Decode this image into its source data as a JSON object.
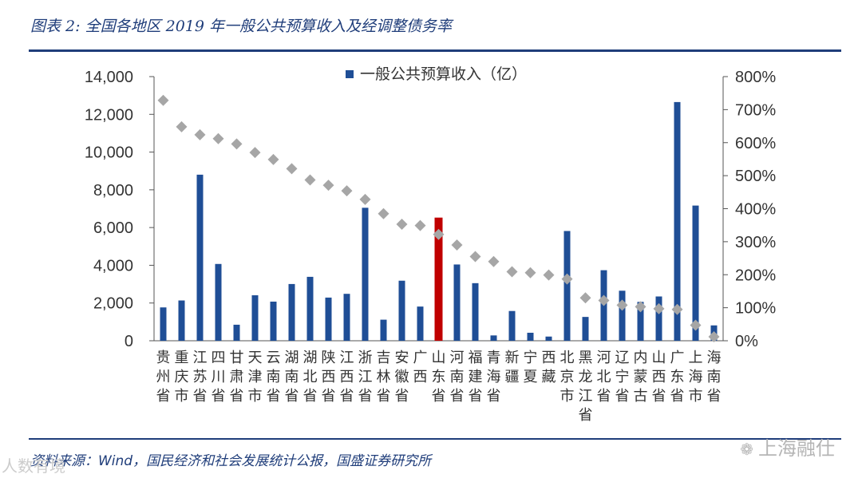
{
  "header": {
    "title": "图表 2: 全国各地区 2019 年一般公共预算收入及经调整债务率"
  },
  "footer": {
    "source": "资料来源：Wind，国民经济和社会发展统计公报，国盛证券研究所"
  },
  "watermarks": {
    "left": "人数有境",
    "right": "上海融仕",
    "right_icon": "wechat-icon"
  },
  "colors": {
    "bar": "#1f4e96",
    "highlight_bar": "#c00000",
    "marker": "#a6a6a6",
    "title": "#1f3d7a"
  },
  "chart_data": {
    "type": "bar",
    "title": "",
    "legend": {
      "position": "top-center",
      "entries": [
        "一般公共预算收入（亿）"
      ]
    },
    "categories": [
      "贵州省",
      "重庆市",
      "江苏省",
      "四川省",
      "甘肃省",
      "天津市",
      "云南省",
      "湖南省",
      "湖北省",
      "陕西省",
      "江西省",
      "浙江省",
      "吉林省",
      "安徽省",
      "广西",
      "山东省",
      "河南省",
      "福建省",
      "青海省",
      "新疆",
      "宁夏",
      "西藏",
      "北京市",
      "黑龙江省",
      "河北省",
      "辽宁省",
      "内蒙古",
      "山西省",
      "广东省",
      "上海市",
      "海南省"
    ],
    "highlight_index": 15,
    "series": [
      {
        "name": "一般公共预算收入（亿）",
        "type": "bar",
        "axis": "left",
        "values": [
          1767,
          2135,
          8802,
          4070,
          850,
          2410,
          2074,
          3007,
          3388,
          2288,
          2487,
          7048,
          1117,
          3183,
          1812,
          6527,
          4042,
          3052,
          282,
          1577,
          424,
          222,
          5817,
          1263,
          3739,
          2652,
          2060,
          2347,
          12651,
          7165,
          814
        ]
      },
      {
        "name": "",
        "type": "scatter",
        "axis": "right",
        "marker": "diamond",
        "values": [
          728,
          648,
          624,
          612,
          596,
          570,
          549,
          521,
          487,
          471,
          454,
          428,
          385,
          353,
          349,
          322,
          290,
          255,
          240,
          209,
          206,
          199,
          187,
          130,
          122,
          108,
          103,
          97,
          95,
          47,
          12
        ]
      }
    ],
    "y_left": {
      "min": 0,
      "max": 14000,
      "ticks": [
        "0",
        "2,000",
        "4,000",
        "6,000",
        "8,000",
        "10,000",
        "12,000",
        "14,000"
      ]
    },
    "y_right": {
      "min": 0,
      "max": 800,
      "ticks": [
        "0%",
        "100%",
        "200%",
        "300%",
        "400%",
        "500%",
        "600%",
        "700%",
        "800%"
      ]
    },
    "grid": false
  }
}
